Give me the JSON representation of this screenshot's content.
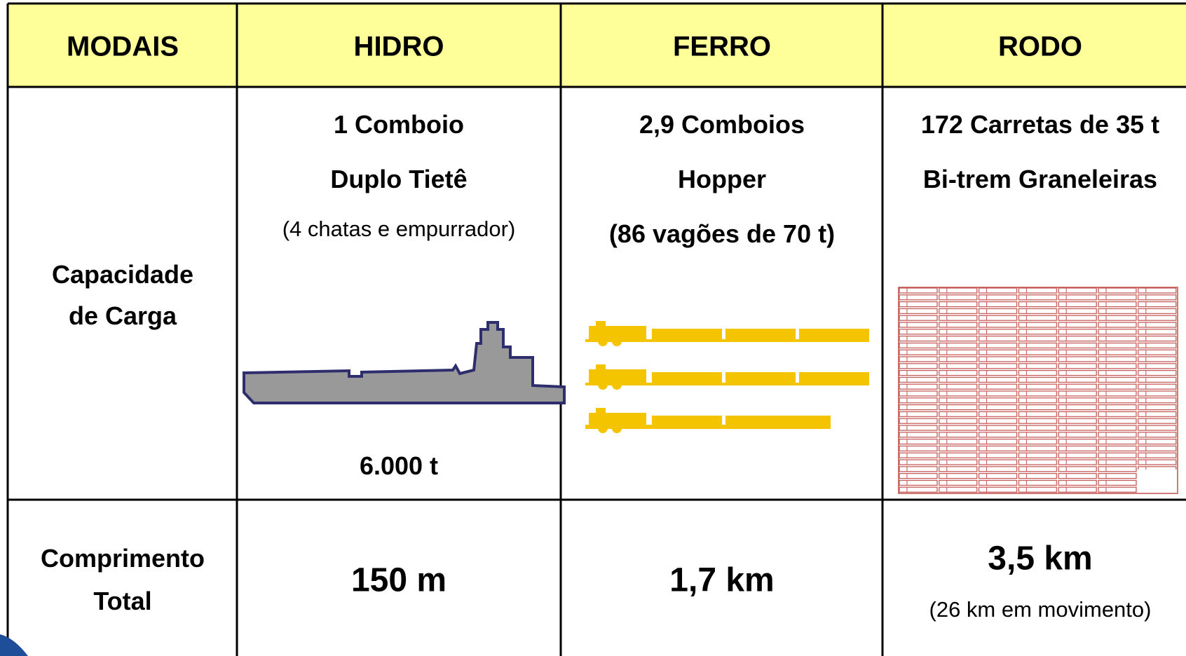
{
  "table": {
    "header": [
      "MODAIS",
      "HIDRO",
      "FERRO",
      "RODO"
    ],
    "rows": [
      [
        [
          "Capacidade",
          "de Carga"
        ],
        [
          "1 Comboio",
          "Duplo Tietê",
          "(4 chatas e empurrador)",
          "6.000 t"
        ],
        [
          "2,9 Comboios",
          "Hopper",
          "(86 vagões de 70 t)"
        ],
        [
          "172 Carretas de 35 t",
          "Bi-trem Graneleiras"
        ]
      ],
      [
        [
          "Comprimento",
          "Total"
        ],
        [
          "150 m"
        ],
        [
          "1,7 km"
        ],
        [
          "3,5 km",
          "(26 km em movimento)"
        ]
      ]
    ]
  }
}
